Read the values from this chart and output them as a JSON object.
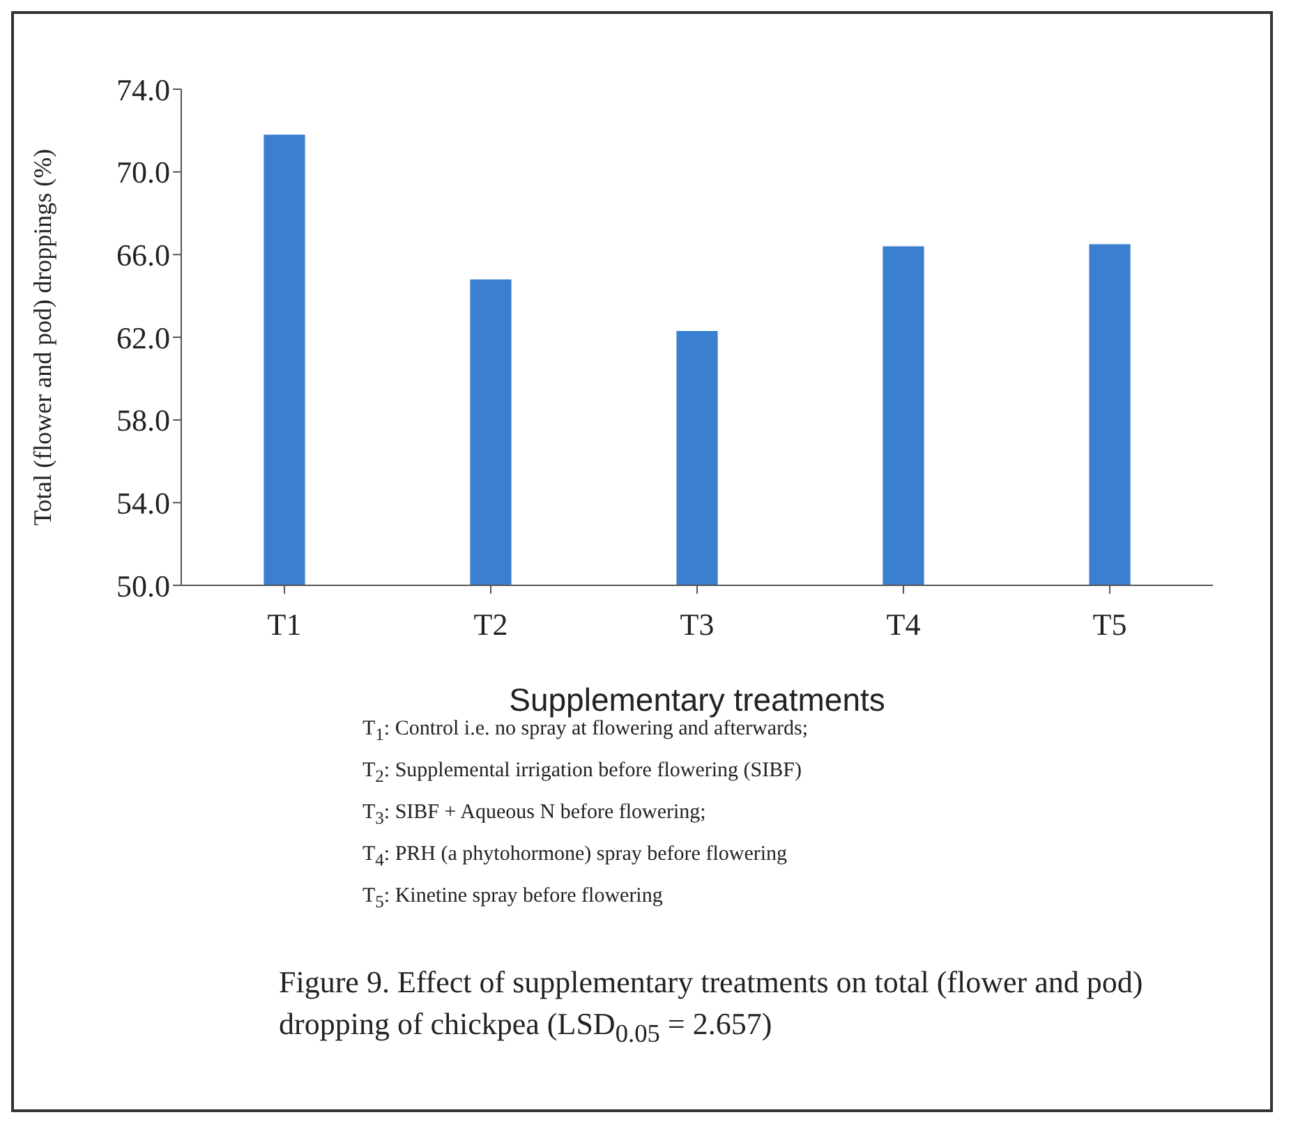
{
  "chart_data": {
    "type": "bar",
    "title": "Figure  9. Effect of  supplementary treatments on total (flower and pod) dropping of chickpea (LSD$_{0.05}$ = 2.657)",
    "xlabel": "Supplementary treatments",
    "ylabel": "Total (flower and pod) droppings (%)",
    "categories": [
      "T1",
      "T2",
      "T3",
      "T4",
      "T5"
    ],
    "values": [
      71.8,
      64.8,
      62.3,
      66.4,
      66.5
    ],
    "color": "#3b7fd0",
    "ylim": [
      50,
      74
    ],
    "yticks": [
      {
        "value": 50,
        "label": "50.0"
      },
      {
        "value": 54,
        "label": "54.0"
      },
      {
        "value": 58,
        "label": "58.0"
      },
      {
        "value": 62,
        "label": "62.0"
      },
      {
        "value": 66,
        "label": "66.0"
      },
      {
        "value": 70,
        "label": "70.0"
      },
      {
        "value": 74,
        "label": "74.0"
      }
    ],
    "grid": false,
    "legend": false,
    "annotations": [
      "T$_{1}$: Control i.e. no spray at flowering and afterwards;",
      "T$_{2}$: Supplemental irrigation before flowering (SIBF)",
      "T$_{3}$: SIBF + Aqueous N before flowering;",
      "T$_{4}$: PRH (a phytohormone) spray before flowering",
      "T$_{5}$: Kinetine spray before flowering"
    ]
  }
}
